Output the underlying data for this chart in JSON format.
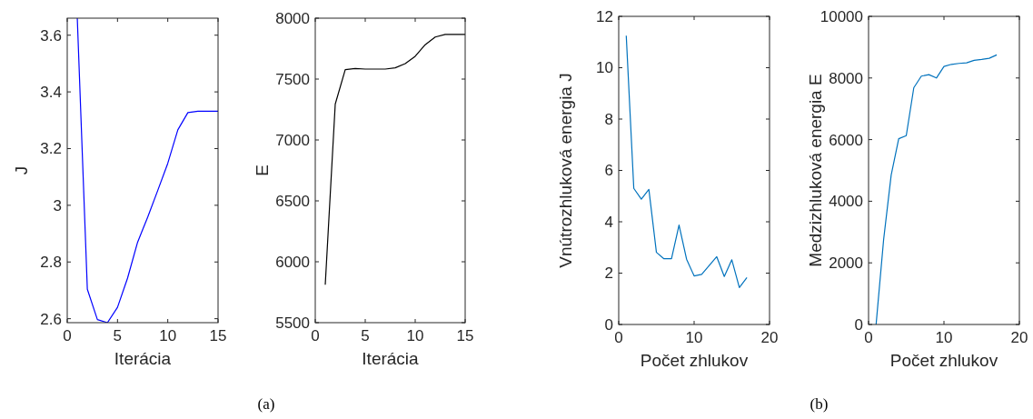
{
  "chart_data": [
    {
      "type": "line",
      "xlabel": "Iterácia",
      "ylabel": "J",
      "xlim": [
        0,
        15
      ],
      "xticks": [
        0,
        5,
        10,
        15
      ],
      "ylim": [
        2.586,
        3.66
      ],
      "yticks": [
        2.6,
        2.8,
        3,
        3.2,
        3.4,
        3.6
      ],
      "grid": false,
      "annotations": [
        "(a)"
      ],
      "series": [
        {
          "color": "#0000ff",
          "x": [
            1,
            2,
            3,
            4,
            5,
            6,
            7,
            8,
            9,
            10,
            11,
            12,
            13,
            14,
            15
          ],
          "values": [
            3.66,
            2.704,
            2.597,
            2.586,
            2.64,
            2.743,
            2.87,
            2.958,
            3.052,
            3.148,
            3.266,
            3.327,
            3.332,
            3.332,
            3.332
          ]
        }
      ]
    },
    {
      "type": "line",
      "xlabel": "Iterácia",
      "ylabel": "E",
      "xlim": [
        0,
        15
      ],
      "xticks": [
        0,
        5,
        10,
        15
      ],
      "ylim": [
        5500,
        8000
      ],
      "yticks": [
        5500,
        6000,
        6500,
        7000,
        7500,
        8000
      ],
      "grid": false,
      "series": [
        {
          "color": "#000000",
          "x": [
            1,
            2,
            3,
            4,
            5,
            6,
            7,
            8,
            9,
            10,
            11,
            12,
            13,
            14,
            15
          ],
          "values": [
            5812,
            7295,
            7577,
            7587,
            7582,
            7582,
            7582,
            7592,
            7627,
            7687,
            7782,
            7845,
            7867,
            7867,
            7867
          ]
        }
      ]
    },
    {
      "type": "line",
      "xlabel": "Počet zhlukov",
      "ylabel": "Vnútrozhluková energia J",
      "xlim": [
        0,
        20
      ],
      "xticks": [
        0,
        10,
        20
      ],
      "ylim": [
        0,
        12
      ],
      "yticks": [
        0,
        2,
        4,
        6,
        8,
        10,
        12
      ],
      "grid": false,
      "annotations": [
        "(b)"
      ],
      "series": [
        {
          "color": "#0072bd",
          "x": [
            1,
            2,
            3,
            4,
            5,
            6,
            7,
            8,
            9,
            10,
            11,
            12,
            13,
            14,
            15,
            16,
            17
          ],
          "values": [
            11.25,
            5.3,
            4.88,
            5.26,
            2.81,
            2.56,
            2.56,
            3.87,
            2.54,
            1.89,
            1.95,
            2.3,
            2.64,
            1.87,
            2.52,
            1.44,
            1.83
          ]
        }
      ]
    },
    {
      "type": "line",
      "xlabel": "Počet zhlukov",
      "ylabel": "Medzizhluková energia E",
      "xlim": [
        0,
        20
      ],
      "xticks": [
        0,
        10,
        20
      ],
      "ylim": [
        0,
        10000
      ],
      "yticks": [
        0,
        2000,
        4000,
        6000,
        8000,
        10000
      ],
      "grid": false,
      "series": [
        {
          "color": "#0072bd",
          "x": [
            1,
            2,
            3,
            4,
            5,
            6,
            7,
            8,
            9,
            10,
            11,
            12,
            13,
            14,
            15,
            16,
            17
          ],
          "values": [
            0,
            2759,
            4847,
            6030,
            6128,
            7685,
            8060,
            8108,
            8000,
            8374,
            8443,
            8473,
            8493,
            8571,
            8601,
            8640,
            8749
          ]
        }
      ]
    }
  ]
}
